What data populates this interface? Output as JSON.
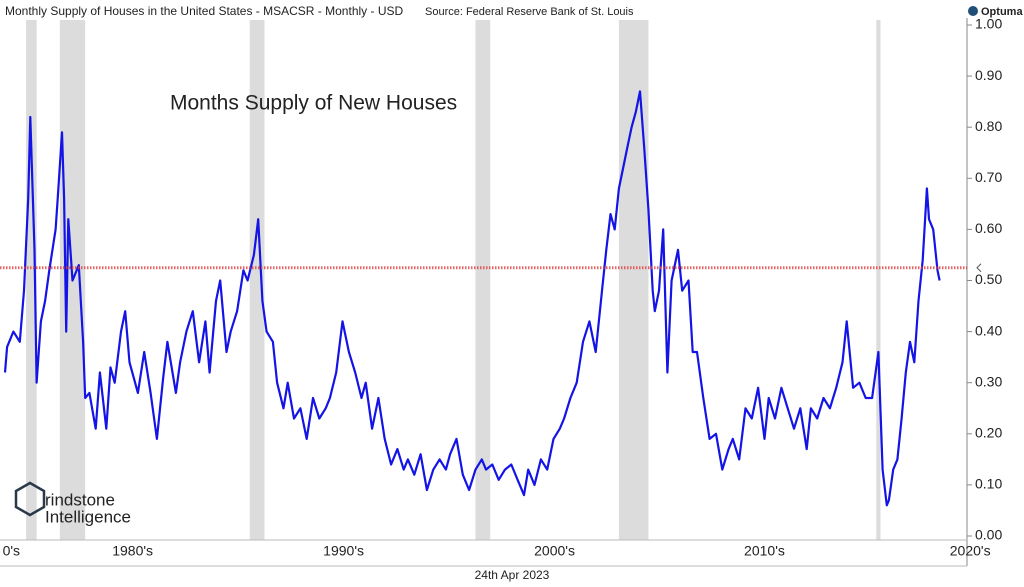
{
  "chart_data": {
    "type": "line",
    "title": "Monthly Supply of Houses in the United States - MSACSR - Monthly - USD",
    "source": "Source: Federal Reserve Bank of St. Louis",
    "annotation": "Months Supply of New Houses",
    "date_label": "24th Apr 2023",
    "brand": "Optuma",
    "watermark": [
      "rindstone",
      "Intelligence"
    ],
    "xlim": [
      1978.9,
      2024.5
    ],
    "ylim": [
      0,
      1
    ],
    "yticks": [
      {
        "value": 0,
        "label": "0.00"
      },
      {
        "value": 0.1,
        "label": "0.10"
      },
      {
        "value": 0.2,
        "label": "0.20"
      },
      {
        "value": 0.3,
        "label": "0.30"
      },
      {
        "value": 0.4,
        "label": "0.40"
      },
      {
        "value": 0.5,
        "label": "0.50"
      },
      {
        "value": 0.6,
        "label": "0.60"
      },
      {
        "value": 0.7,
        "label": "0.70"
      },
      {
        "value": 0.8,
        "label": "0.80"
      },
      {
        "value": 0.9,
        "label": "0.90"
      },
      {
        "value": 1,
        "label": "1.00"
      }
    ],
    "xticks": [
      {
        "value": 1979.2,
        "label": "0's"
      },
      {
        "value": 1984.95,
        "label": "1980's"
      },
      {
        "value": 1994.95,
        "label": "1990's"
      },
      {
        "value": 2004.95,
        "label": "2000's"
      },
      {
        "value": 2014.9,
        "label": "2010's"
      },
      {
        "value": 2024.65,
        "label": "2020's"
      }
    ],
    "reference_line": {
      "value": 0.525,
      "color": "#e04040"
    },
    "shaded_periods": [
      [
        1979.9,
        1980.4
      ],
      [
        1981.5,
        1982.7
      ],
      [
        1990.5,
        1991.2
      ],
      [
        2001.2,
        2001.9
      ],
      [
        2008.0,
        2009.4
      ],
      [
        2020.2,
        2020.4
      ]
    ],
    "shade_color": "#dcdcdc",
    "series": [
      {
        "name": "MSACSR",
        "color": "#1414e6",
        "x": [
          1978.9,
          1979.0,
          1979.3,
          1979.6,
          1979.8,
          1980.0,
          1980.1,
          1980.3,
          1980.4,
          1980.6,
          1980.8,
          1981.0,
          1981.3,
          1981.4,
          1981.6,
          1981.7,
          1981.8,
          1981.9,
          1982.1,
          1982.4,
          1982.6,
          1982.7,
          1982.9,
          1983.2,
          1983.4,
          1983.7,
          1983.9,
          1984.1,
          1984.4,
          1984.6,
          1984.8,
          1985.2,
          1985.5,
          1985.8,
          1986.1,
          1986.4,
          1986.6,
          1987.0,
          1987.2,
          1987.5,
          1987.8,
          1988.1,
          1988.4,
          1988.6,
          1988.9,
          1989.1,
          1989.4,
          1989.6,
          1989.9,
          1990.2,
          1990.4,
          1990.7,
          1990.9,
          1991.1,
          1991.3,
          1991.6,
          1991.8,
          1992.1,
          1992.3,
          1992.6,
          1992.9,
          1993.2,
          1993.5,
          1993.8,
          1994.1,
          1994.3,
          1994.6,
          1994.9,
          1995.2,
          1995.5,
          1995.8,
          1996.0,
          1996.3,
          1996.6,
          1996.9,
          1997.2,
          1997.5,
          1997.8,
          1998.0,
          1998.3,
          1998.6,
          1998.9,
          1999.2,
          1999.5,
          1999.8,
          2000.0,
          2000.3,
          2000.6,
          2000.9,
          2001.2,
          2001.5,
          2001.7,
          2002.0,
          2002.3,
          2002.6,
          2002.9,
          2003.2,
          2003.5,
          2003.7,
          2004.0,
          2004.3,
          2004.6,
          2004.9,
          2005.2,
          2005.4,
          2005.7,
          2006.0,
          2006.3,
          2006.6,
          2006.9,
          2007.2,
          2007.4,
          2007.6,
          2007.8,
          2008.0,
          2008.2,
          2008.4,
          2008.6,
          2008.8,
          2009.0,
          2009.2,
          2009.4,
          2009.6,
          2009.7,
          2009.9,
          2010.1,
          2010.3,
          2010.5,
          2010.8,
          2011.0,
          2011.3,
          2011.5,
          2011.7,
          2012.0,
          2012.3,
          2012.6,
          2012.9,
          2013.2,
          2013.4,
          2013.7,
          2014.0,
          2014.3,
          2014.6,
          2014.9,
          2015.1,
          2015.4,
          2015.7,
          2016.0,
          2016.3,
          2016.6,
          2016.9,
          2017.1,
          2017.4,
          2017.7,
          2018.0,
          2018.3,
          2018.6,
          2018.8,
          2019.1,
          2019.4,
          2019.7,
          2020.0,
          2020.3,
          2020.5,
          2020.7,
          2020.8,
          2021.0,
          2021.2,
          2021.4,
          2021.6,
          2021.8,
          2022.0,
          2022.2,
          2022.4,
          2022.6,
          2022.7,
          2022.9,
          2023.1,
          2023.2
        ],
        "values": [
          0.32,
          0.37,
          0.4,
          0.38,
          0.48,
          0.66,
          0.82,
          0.56,
          0.3,
          0.42,
          0.46,
          0.52,
          0.6,
          0.66,
          0.79,
          0.66,
          0.4,
          0.62,
          0.5,
          0.53,
          0.38,
          0.27,
          0.28,
          0.21,
          0.32,
          0.21,
          0.33,
          0.3,
          0.4,
          0.44,
          0.34,
          0.28,
          0.36,
          0.28,
          0.19,
          0.31,
          0.38,
          0.28,
          0.34,
          0.4,
          0.44,
          0.34,
          0.42,
          0.32,
          0.46,
          0.5,
          0.36,
          0.4,
          0.44,
          0.52,
          0.5,
          0.55,
          0.62,
          0.46,
          0.4,
          0.38,
          0.3,
          0.25,
          0.3,
          0.23,
          0.25,
          0.19,
          0.27,
          0.23,
          0.25,
          0.27,
          0.32,
          0.42,
          0.36,
          0.32,
          0.27,
          0.3,
          0.21,
          0.27,
          0.19,
          0.14,
          0.17,
          0.13,
          0.15,
          0.12,
          0.16,
          0.09,
          0.13,
          0.15,
          0.13,
          0.16,
          0.19,
          0.12,
          0.09,
          0.13,
          0.15,
          0.13,
          0.14,
          0.11,
          0.13,
          0.14,
          0.11,
          0.08,
          0.13,
          0.1,
          0.15,
          0.13,
          0.19,
          0.21,
          0.23,
          0.27,
          0.3,
          0.38,
          0.42,
          0.36,
          0.48,
          0.56,
          0.63,
          0.6,
          0.68,
          0.72,
          0.76,
          0.8,
          0.83,
          0.87,
          0.76,
          0.64,
          0.48,
          0.44,
          0.48,
          0.6,
          0.32,
          0.5,
          0.56,
          0.48,
          0.5,
          0.36,
          0.36,
          0.27,
          0.19,
          0.2,
          0.13,
          0.17,
          0.19,
          0.15,
          0.25,
          0.23,
          0.29,
          0.19,
          0.27,
          0.23,
          0.29,
          0.25,
          0.21,
          0.25,
          0.17,
          0.25,
          0.23,
          0.27,
          0.25,
          0.29,
          0.34,
          0.42,
          0.29,
          0.3,
          0.27,
          0.27,
          0.36,
          0.13,
          0.06,
          0.07,
          0.13,
          0.15,
          0.23,
          0.32,
          0.38,
          0.34,
          0.46,
          0.54,
          0.68,
          0.62,
          0.6,
          0.52,
          0.5
        ]
      }
    ]
  }
}
